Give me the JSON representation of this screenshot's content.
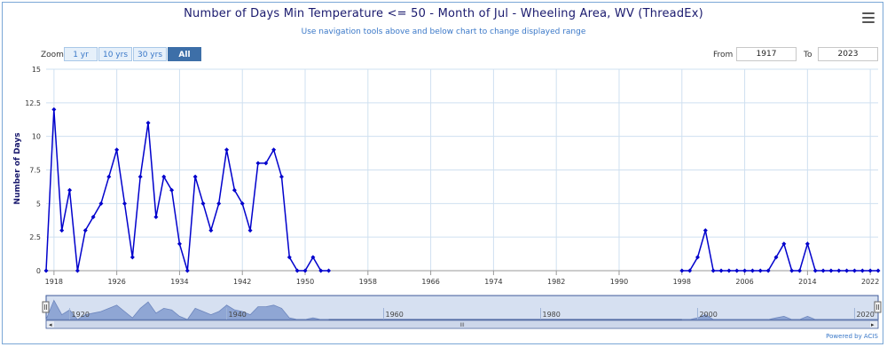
{
  "title": "Number of Days Min Temperature <= 50 - Month of Jul - Wheeling Area, WV (ThreadEx)",
  "subtitle": "Use navigation tools above and below chart to change displayed range",
  "zoom": {
    "label": "Zoom",
    "buttons": [
      {
        "label": "1 yr",
        "active": false
      },
      {
        "label": "10 yrs",
        "active": false
      },
      {
        "label": "30 yrs",
        "active": false
      },
      {
        "label": "All",
        "active": true
      }
    ]
  },
  "range": {
    "from_label": "From",
    "from_value": "1917",
    "to_label": "To",
    "to_value": "2023"
  },
  "powered_by": "Powered by ACIS",
  "menu_icon": "hamburger-menu-icon",
  "colors": {
    "series": "#0000cc",
    "grid": "#cfe0f0",
    "navigator_fill": "#8fa6d4",
    "navigator_bg": "#d6e0f1"
  },
  "chart_data": {
    "type": "line",
    "title": "Number of Days Min Temperature <= 50 - Month of Jul - Wheeling Area, WV (ThreadEx)",
    "xlabel": "",
    "ylabel": "Number of Days",
    "xlim": [
      1917,
      2023
    ],
    "ylim": [
      0,
      15
    ],
    "xticks": [
      1918,
      1926,
      1934,
      1942,
      1950,
      1958,
      1966,
      1974,
      1982,
      1990,
      1998,
      2006,
      2014,
      2022
    ],
    "yticks": [
      0,
      2.5,
      5,
      7.5,
      10,
      12.5,
      15
    ],
    "ytick_labels": [
      "0",
      "2.5",
      "5",
      "7.5",
      "10",
      "12.5",
      "15"
    ],
    "grid": true,
    "series": [
      {
        "segments": [
          {
            "x": [
              1917,
              1918,
              1919,
              1920,
              1921,
              1922,
              1923,
              1924,
              1925,
              1926,
              1927,
              1928,
              1929,
              1930,
              1931,
              1932,
              1933,
              1934,
              1935,
              1936,
              1937,
              1938,
              1939,
              1940,
              1941,
              1942,
              1943,
              1944,
              1945,
              1946,
              1947,
              1948,
              1949,
              1950,
              1951,
              1952,
              1953
            ],
            "y": [
              0,
              12,
              3,
              6,
              0,
              3,
              4,
              5,
              7,
              9,
              5,
              1,
              7,
              11,
              4,
              7,
              6,
              2,
              0,
              7,
              5,
              3,
              5,
              9,
              6,
              5,
              3,
              8,
              8,
              9,
              7,
              1,
              0,
              0,
              1,
              0,
              0
            ]
          },
          {
            "x": [
              1998,
              1999,
              2000,
              2001,
              2002,
              2003,
              2004,
              2005,
              2006,
              2007,
              2008,
              2009,
              2010,
              2011,
              2012,
              2013,
              2014,
              2015,
              2016,
              2017,
              2018,
              2019,
              2020,
              2021,
              2022,
              2023
            ],
            "y": [
              0,
              0,
              1,
              3,
              0,
              0,
              0,
              0,
              0,
              0,
              0,
              0,
              1,
              2,
              0,
              0,
              2,
              0,
              0,
              0,
              0,
              0,
              0,
              0,
              0,
              0
            ]
          }
        ]
      }
    ],
    "navigator": {
      "tick_labels": [
        "1920",
        "1940",
        "1960",
        "1980",
        "2000",
        "2020"
      ],
      "tick_years": [
        1920,
        1940,
        1960,
        1980,
        2000,
        2020
      ],
      "scrollbar_grip": "III"
    }
  }
}
